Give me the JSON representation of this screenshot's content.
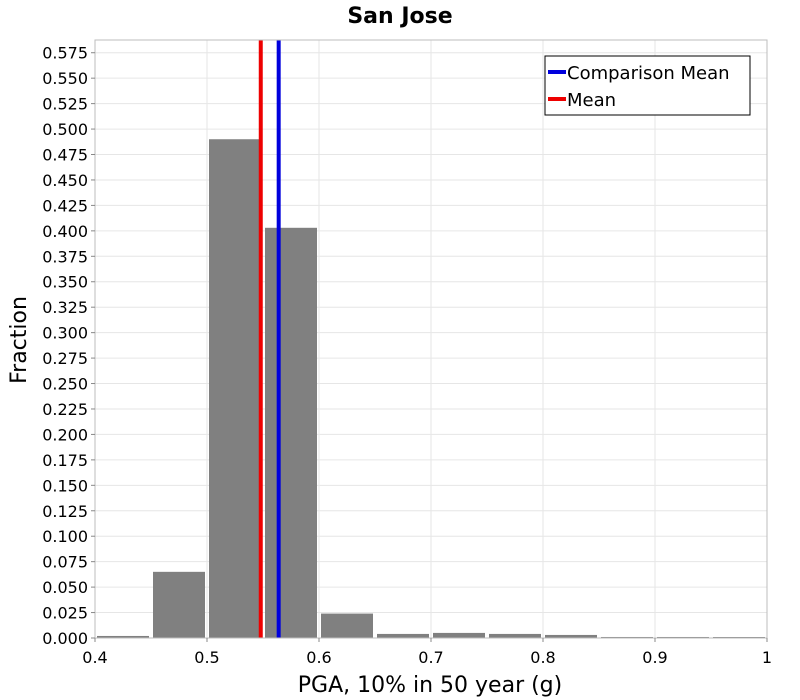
{
  "chart_data": {
    "type": "bar",
    "title": "San Jose",
    "xlabel": "PGA, 10% in 50 year (g)",
    "ylabel": "Fraction",
    "xlim": [
      0.4,
      1.0
    ],
    "ylim": [
      0.0,
      0.5875
    ],
    "bin_width": 0.05,
    "bins": [
      {
        "center": 0.425,
        "value": 0.002
      },
      {
        "center": 0.475,
        "value": 0.065
      },
      {
        "center": 0.525,
        "value": 0.49
      },
      {
        "center": 0.575,
        "value": 0.403
      },
      {
        "center": 0.625,
        "value": 0.024
      },
      {
        "center": 0.675,
        "value": 0.004
      },
      {
        "center": 0.725,
        "value": 0.005
      },
      {
        "center": 0.775,
        "value": 0.004
      },
      {
        "center": 0.825,
        "value": 0.003
      },
      {
        "center": 0.875,
        "value": 0.001
      },
      {
        "center": 0.925,
        "value": 0.001
      },
      {
        "center": 0.975,
        "value": 0.0005
      }
    ],
    "x_ticks": [
      "0.4",
      "0.5",
      "0.6",
      "0.7",
      "0.8",
      "0.9",
      "1"
    ],
    "y_ticks": [
      "0.000",
      "0.025",
      "0.050",
      "0.075",
      "0.100",
      "0.125",
      "0.150",
      "0.175",
      "0.200",
      "0.225",
      "0.250",
      "0.275",
      "0.300",
      "0.325",
      "0.350",
      "0.375",
      "0.400",
      "0.425",
      "0.450",
      "0.475",
      "0.500",
      "0.525",
      "0.550",
      "0.575"
    ],
    "lines": [
      {
        "name": "Comparison Mean",
        "x": 0.564,
        "color": "#0000dd"
      },
      {
        "name": "Mean",
        "x": 0.548,
        "color": "#ee0000"
      }
    ],
    "legend": {
      "position": "top-right",
      "entries": [
        "Comparison Mean",
        "Mean"
      ]
    },
    "colors": {
      "bar": "#808080",
      "grid": "#e6e6e6"
    }
  }
}
